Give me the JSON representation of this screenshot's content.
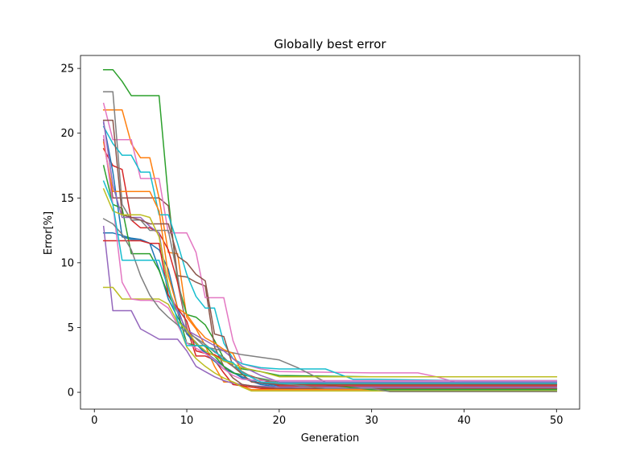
{
  "chart_data": {
    "type": "line",
    "title": "Globally best error",
    "xlabel": "Generation",
    "ylabel": "Error[%]",
    "xlim": [
      -1.5,
      52.5
    ],
    "ylim": [
      -1.3,
      26.0
    ],
    "xticks": [
      0,
      10,
      20,
      30,
      40,
      50
    ],
    "yticks": [
      0,
      5,
      10,
      15,
      20,
      25
    ],
    "grid": false,
    "legend": "none",
    "series": [
      {
        "color": "#1f77b4",
        "x": [
          1,
          2,
          3,
          4,
          5,
          6,
          7,
          8,
          9,
          10,
          12,
          14,
          16,
          18,
          20,
          22,
          25,
          30,
          40,
          50
        ],
        "y": [
          12.3,
          12.3,
          12.1,
          11.9,
          11.8,
          11.5,
          9.5,
          7.2,
          5.8,
          4.6,
          3.1,
          2.0,
          1.1,
          0.6,
          0.4,
          0.3,
          0.3,
          0.3,
          0.3,
          0.3
        ]
      },
      {
        "color": "#ff7f0e",
        "x": [
          1,
          2,
          3,
          4,
          5,
          6,
          7,
          8,
          9,
          10,
          11,
          12,
          13,
          14,
          15,
          17,
          20,
          30,
          40,
          50
        ],
        "y": [
          21.8,
          21.8,
          21.8,
          19.2,
          18.1,
          18.1,
          15.0,
          10.8,
          10.7,
          5.8,
          4.9,
          3.6,
          2.0,
          0.8,
          0.8,
          0.2,
          0.2,
          0.2,
          0.2,
          0.2
        ]
      },
      {
        "color": "#2ca02c",
        "x": [
          1,
          2,
          3,
          4,
          5,
          6,
          7,
          8,
          9,
          10,
          11,
          12,
          13,
          14,
          15,
          16,
          18,
          20,
          30,
          40,
          50
        ],
        "y": [
          24.9,
          24.9,
          24.0,
          22.9,
          22.9,
          22.9,
          22.9,
          15.0,
          8.5,
          6.0,
          5.8,
          5.2,
          4.0,
          2.6,
          2.0,
          1.8,
          1.6,
          1.3,
          1.2,
          1.2,
          1.2
        ]
      },
      {
        "color": "#d62728",
        "x": [
          1,
          2,
          3,
          4,
          5,
          6,
          7,
          8,
          9,
          10,
          11,
          12,
          13,
          14,
          15,
          18,
          20,
          30,
          40,
          50
        ],
        "y": [
          18.8,
          17.5,
          17.2,
          13.3,
          12.7,
          12.7,
          12.3,
          11.0,
          8.5,
          5.0,
          2.8,
          2.8,
          2.5,
          1.5,
          0.6,
          0.3,
          0.3,
          0.3,
          0.3,
          0.3
        ]
      },
      {
        "color": "#9467bd",
        "x": [
          1,
          2,
          3,
          4,
          5,
          6,
          7,
          8,
          9,
          10,
          11,
          12,
          13,
          14,
          15,
          17,
          20,
          25,
          30,
          40,
          50
        ],
        "y": [
          12.8,
          6.3,
          6.3,
          6.3,
          4.9,
          4.5,
          4.1,
          4.1,
          4.1,
          3.2,
          2.0,
          1.6,
          1.2,
          0.9,
          0.7,
          0.5,
          0.4,
          0.4,
          0.4,
          0.4,
          0.4
        ]
      },
      {
        "color": "#8c564b",
        "x": [
          1,
          2,
          3,
          4,
          5,
          6,
          7,
          8,
          9,
          10,
          11,
          12,
          13,
          14,
          15,
          16,
          18,
          20,
          30,
          40,
          50
        ],
        "y": [
          19.5,
          15.0,
          15.0,
          15.0,
          15.0,
          15.0,
          15.0,
          14.4,
          9.0,
          8.9,
          8.5,
          8.2,
          3.5,
          2.0,
          1.1,
          0.6,
          0.4,
          0.3,
          0.3,
          0.3,
          0.3
        ]
      },
      {
        "color": "#e377c2",
        "x": [
          1,
          2,
          3,
          4,
          5,
          6,
          7,
          8,
          9,
          10,
          11,
          12,
          13,
          14,
          15,
          16,
          18,
          20,
          30,
          35,
          37,
          40,
          50
        ],
        "y": [
          22.3,
          19.5,
          19.5,
          19.5,
          16.5,
          16.5,
          16.5,
          12.3,
          12.3,
          12.3,
          10.8,
          7.3,
          7.3,
          7.3,
          4.0,
          2.2,
          1.8,
          1.6,
          1.5,
          1.5,
          1.2,
          0.6,
          0.6
        ]
      },
      {
        "color": "#7f7f7f",
        "x": [
          1,
          2,
          3,
          4,
          5,
          6,
          7,
          8,
          9,
          10,
          12,
          14,
          16,
          18,
          20,
          21,
          22,
          25,
          30,
          40,
          50
        ],
        "y": [
          23.2,
          23.2,
          14.5,
          13.3,
          13.3,
          12.5,
          12.5,
          12.5,
          9.0,
          4.8,
          3.5,
          3.2,
          2.9,
          2.7,
          2.5,
          2.2,
          1.9,
          0.8,
          0.8,
          0.8,
          0.8
        ]
      },
      {
        "color": "#bcbd22",
        "x": [
          1,
          2,
          3,
          4,
          5,
          6,
          7,
          8,
          9,
          10,
          11,
          12,
          13,
          14,
          15,
          16,
          17,
          20,
          30,
          40,
          50
        ],
        "y": [
          8.1,
          8.1,
          7.2,
          7.2,
          7.2,
          7.2,
          7.2,
          6.8,
          5.4,
          3.5,
          2.6,
          2.0,
          1.5,
          1.1,
          0.8,
          0.4,
          0.1,
          0.1,
          0.1,
          0.1,
          0.1
        ]
      },
      {
        "color": "#17becf",
        "x": [
          1,
          2,
          3,
          4,
          5,
          6,
          7,
          8,
          9,
          10,
          11,
          12,
          13,
          14,
          15,
          16,
          18,
          20,
          25,
          28,
          30,
          40,
          50
        ],
        "y": [
          20.5,
          19.2,
          18.3,
          18.3,
          17.0,
          17.0,
          13.7,
          13.7,
          11.5,
          9.1,
          7.4,
          6.5,
          6.5,
          3.8,
          2.6,
          2.2,
          1.9,
          1.8,
          1.8,
          1.0,
          1.0,
          0.9,
          0.9
        ]
      },
      {
        "color": "#1f77b4",
        "x": [
          1,
          2,
          3,
          4,
          5,
          6,
          7,
          8,
          9,
          10,
          12,
          14,
          16,
          18,
          20,
          25,
          30,
          40,
          50
        ],
        "y": [
          20.8,
          17.0,
          12.0,
          11.8,
          11.8,
          11.5,
          11.0,
          9.5,
          6.5,
          4.5,
          3.0,
          1.8,
          1.2,
          0.7,
          0.5,
          0.5,
          0.5,
          0.5,
          0.5
        ]
      },
      {
        "color": "#ff7f0e",
        "x": [
          1,
          2,
          3,
          4,
          5,
          6,
          7,
          8,
          9,
          10,
          11,
          12,
          13,
          14,
          15,
          16,
          18,
          20,
          30,
          40,
          50
        ],
        "y": [
          19.3,
          15.5,
          15.5,
          15.5,
          15.5,
          15.5,
          14.0,
          9.0,
          6.5,
          6.0,
          5.0,
          4.2,
          3.8,
          3.3,
          3.0,
          1.5,
          1.0,
          0.6,
          0.6,
          0.6,
          0.6
        ]
      },
      {
        "color": "#2ca02c",
        "x": [
          1,
          2,
          3,
          4,
          5,
          6,
          7,
          8,
          9,
          10,
          11,
          12,
          13,
          14,
          15,
          17,
          20,
          25,
          30,
          35,
          40,
          50
        ],
        "y": [
          17.5,
          14.5,
          14.2,
          10.7,
          10.7,
          10.7,
          9.4,
          7.5,
          6.2,
          3.8,
          3.6,
          3.6,
          2.8,
          2.0,
          1.5,
          1.2,
          0.8,
          0.6,
          0.2,
          0.2,
          0.2,
          0.2
        ]
      },
      {
        "color": "#d62728",
        "x": [
          1,
          2,
          3,
          4,
          5,
          6,
          7,
          8,
          9,
          10,
          11,
          12,
          13,
          14,
          15,
          16,
          18,
          20,
          30,
          40,
          50
        ],
        "y": [
          11.7,
          11.7,
          11.7,
          11.7,
          11.7,
          11.5,
          11.5,
          7.5,
          6.5,
          5.5,
          3.2,
          3.0,
          2.9,
          2.5,
          2.0,
          1.5,
          1.0,
          0.5,
          0.5,
          0.5,
          0.5
        ]
      },
      {
        "color": "#9467bd",
        "x": [
          1,
          2,
          3,
          4,
          5,
          6,
          7,
          8,
          9,
          10,
          12,
          14,
          16,
          18,
          20,
          30,
          40,
          50
        ],
        "y": [
          20.9,
          16.0,
          13.5,
          13.5,
          13.5,
          12.8,
          12.3,
          8.0,
          6.2,
          4.8,
          4.0,
          3.2,
          2.0,
          1.3,
          0.8,
          0.8,
          0.8,
          0.8
        ]
      },
      {
        "color": "#8c564b",
        "x": [
          1,
          2,
          3,
          4,
          5,
          6,
          7,
          8,
          9,
          10,
          11,
          12,
          13,
          14,
          15,
          17,
          20,
          30,
          40,
          50
        ],
        "y": [
          21.0,
          21.0,
          13.7,
          13.5,
          13.3,
          13.0,
          13.0,
          13.0,
          10.5,
          10.0,
          9.1,
          8.6,
          4.5,
          4.3,
          2.0,
          0.8,
          0.6,
          0.6,
          0.6,
          0.6
        ]
      },
      {
        "color": "#e377c2",
        "x": [
          1,
          2,
          3,
          4,
          5,
          6,
          7,
          8,
          9,
          10,
          11,
          12,
          13,
          14,
          15,
          16,
          18,
          20,
          30,
          40,
          50
        ],
        "y": [
          19.8,
          14.5,
          8.5,
          7.2,
          7.1,
          7.1,
          7.0,
          6.5,
          5.2,
          3.8,
          3.4,
          3.0,
          2.5,
          1.8,
          1.3,
          1.0,
          0.9,
          0.9,
          0.9,
          0.9,
          0.9
        ]
      },
      {
        "color": "#7f7f7f",
        "x": [
          1,
          2,
          3,
          4,
          5,
          6,
          7,
          8,
          9,
          10,
          11,
          12,
          13,
          14,
          15,
          17,
          20,
          25,
          30,
          32,
          40,
          50
        ],
        "y": [
          13.4,
          13.0,
          12.2,
          11.0,
          9.0,
          7.5,
          6.5,
          5.8,
          5.2,
          4.6,
          4.2,
          3.7,
          3.1,
          2.7,
          2.0,
          1.2,
          0.7,
          0.3,
          0.3,
          0.05,
          0.05,
          0.05
        ]
      },
      {
        "color": "#bcbd22",
        "x": [
          1,
          2,
          3,
          4,
          5,
          6,
          7,
          8,
          9,
          10,
          11,
          12,
          13,
          14,
          15,
          16,
          18,
          20,
          30,
          40,
          50
        ],
        "y": [
          15.7,
          14.0,
          13.7,
          13.7,
          13.7,
          13.5,
          12.0,
          8.3,
          5.5,
          4.8,
          3.8,
          3.2,
          2.8,
          2.4,
          2.2,
          1.9,
          1.6,
          1.2,
          1.2,
          1.2,
          1.2
        ]
      },
      {
        "color": "#17becf",
        "x": [
          1,
          2,
          3,
          4,
          5,
          6,
          7,
          8,
          9,
          10,
          11,
          12,
          13,
          14,
          15,
          16,
          18,
          20,
          30,
          40,
          50
        ],
        "y": [
          16.3,
          14.5,
          10.2,
          10.2,
          10.2,
          10.2,
          10.2,
          8.0,
          5.5,
          3.6,
          3.6,
          3.6,
          3.2,
          2.5,
          2.3,
          1.5,
          0.8,
          0.7,
          0.7,
          0.7,
          0.7
        ]
      }
    ]
  }
}
